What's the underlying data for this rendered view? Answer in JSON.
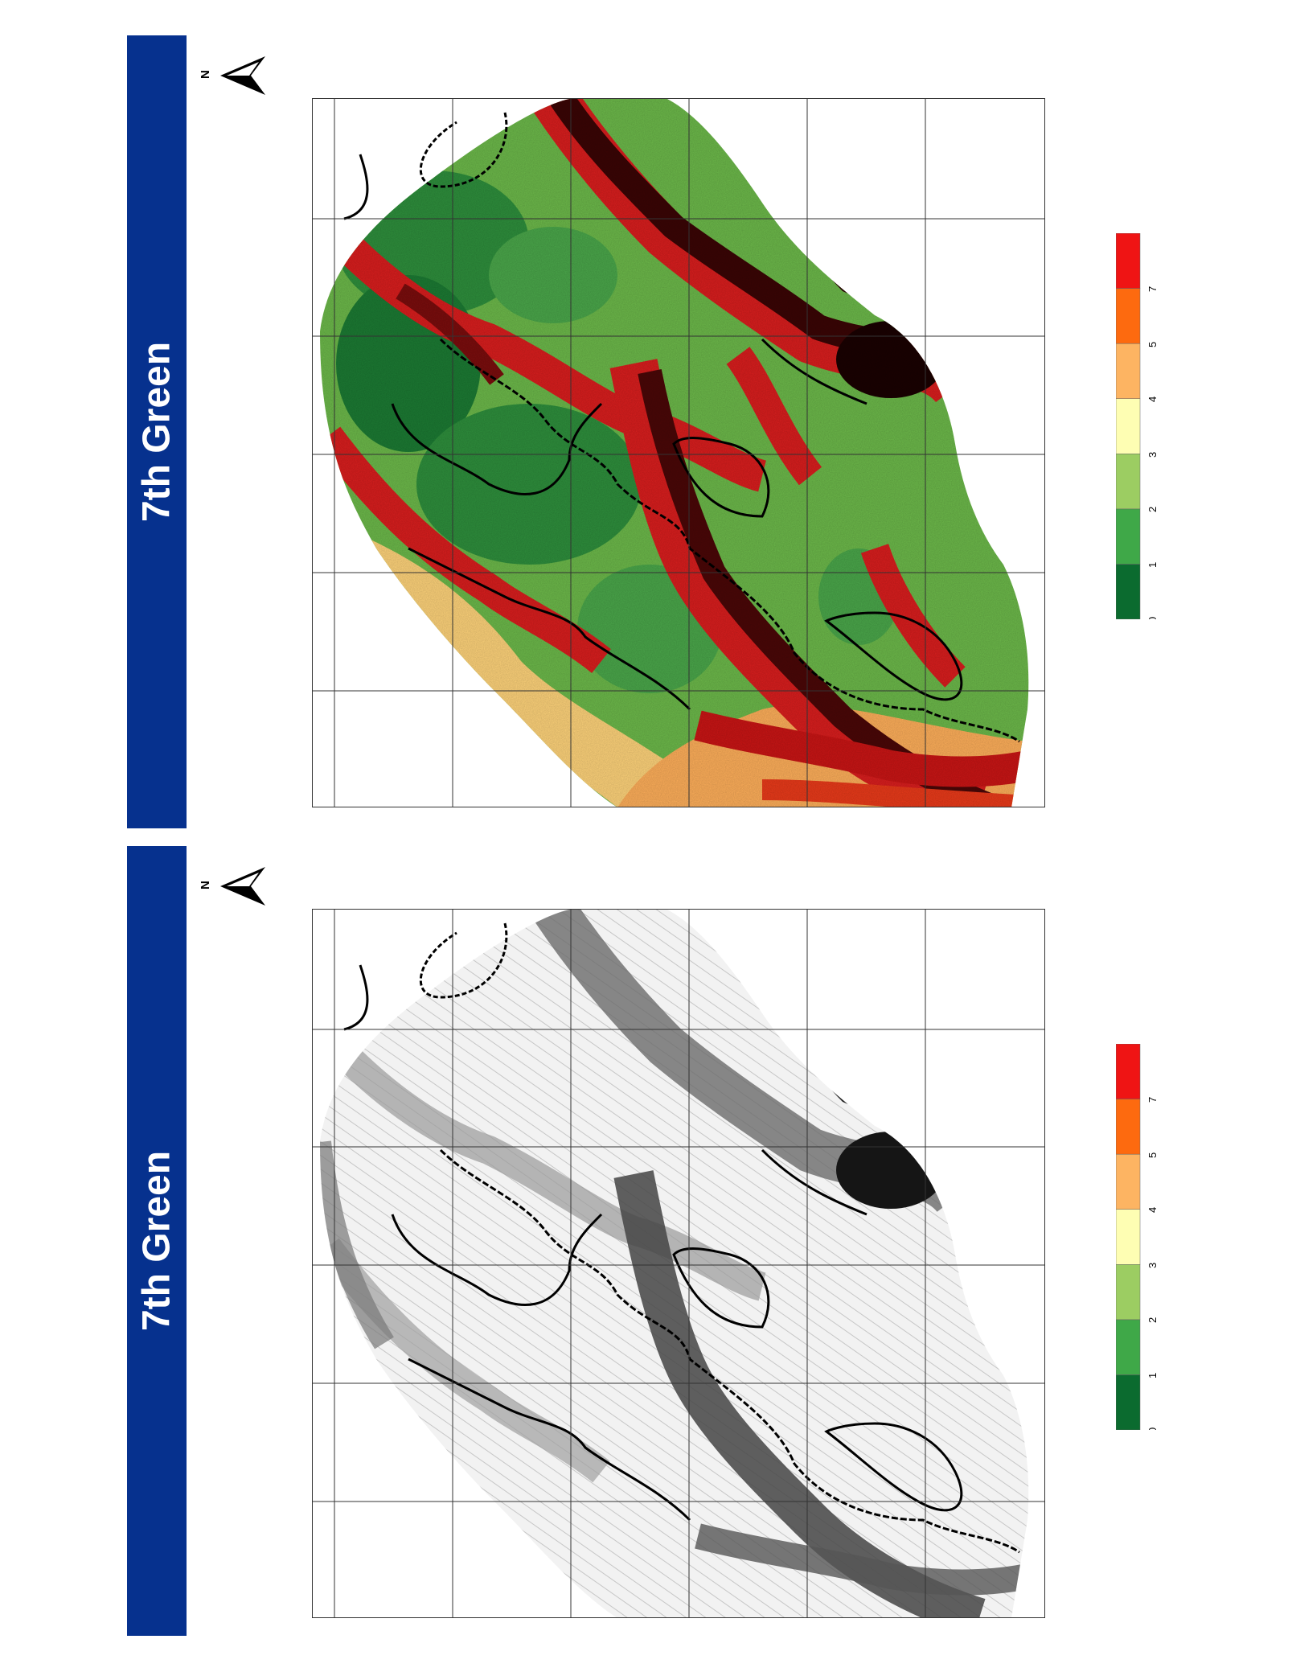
{
  "panels": [
    {
      "title": "7th Green",
      "north_label": "N",
      "style": "slope-color",
      "legend": {
        "labels": [
          "0",
          "1",
          "2",
          "3",
          "4",
          "5",
          "7"
        ]
      }
    },
    {
      "title": "7th Green",
      "north_label": "N",
      "style": "hillshade-gray",
      "legend": {
        "labels": [
          "0",
          "1",
          "2",
          "3",
          "4",
          "5",
          "7"
        ]
      }
    }
  ],
  "colors": {
    "title_bar": "#06318e",
    "legend_ramp": [
      "#0b6b2f",
      "#3fa848",
      "#9ccd62",
      "#fefeb3",
      "#fdb462",
      "#fd6a0f",
      "#ef1414"
    ]
  }
}
